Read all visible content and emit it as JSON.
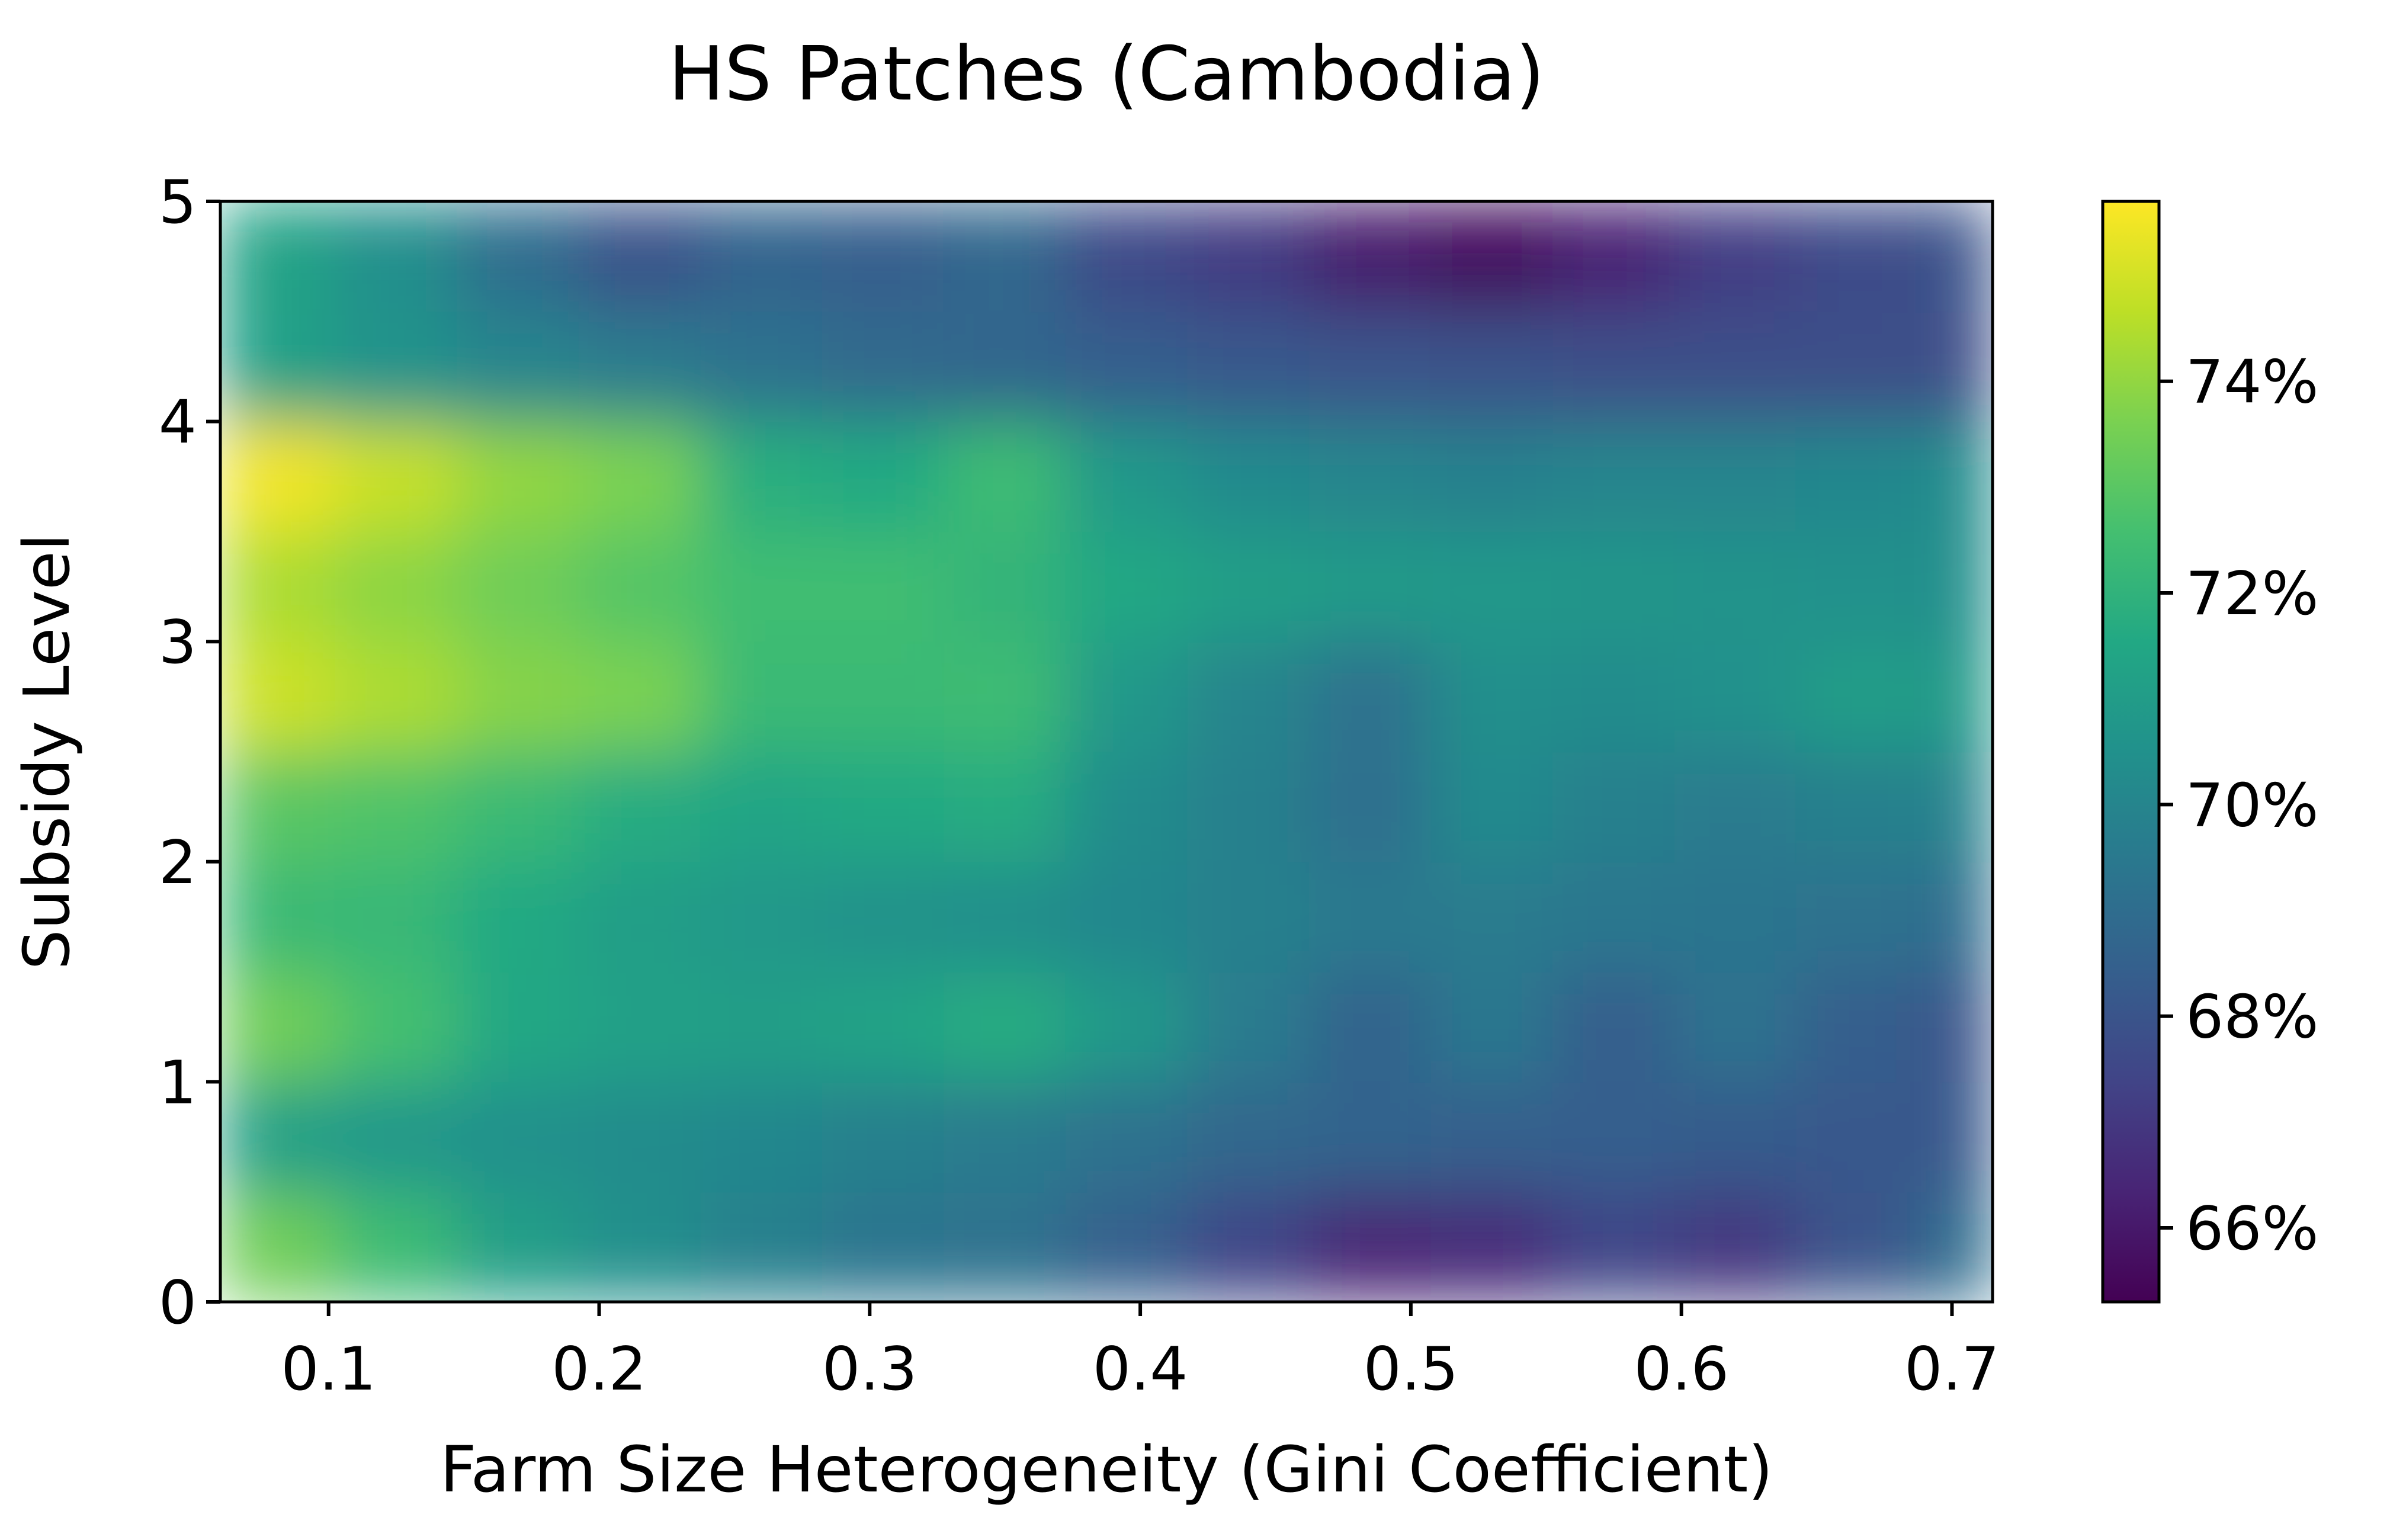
{
  "chart_data": {
    "type": "heatmap",
    "title": "HS Patches (Cambodia)",
    "xlabel": "Farm Size Heterogeneity (Gini Coefficient)",
    "ylabel": "Subsidy Level",
    "xlim": [
      0.06,
      0.715
    ],
    "ylim": [
      0,
      5
    ],
    "x_ticks": [
      0.1,
      0.2,
      0.3,
      0.4,
      0.5,
      0.6,
      0.7
    ],
    "x_tick_labels": [
      "0.1",
      "0.2",
      "0.3",
      "0.4",
      "0.5",
      "0.6",
      "0.7"
    ],
    "y_ticks": [
      0,
      1,
      2,
      3,
      4,
      5
    ],
    "y_tick_labels": [
      "0",
      "1",
      "2",
      "3",
      "4",
      "5"
    ],
    "x": [
      0.08,
      0.125,
      0.17,
      0.215,
      0.26,
      0.305,
      0.35,
      0.395,
      0.44,
      0.485,
      0.53,
      0.575,
      0.62,
      0.665,
      0.71
    ],
    "y": [
      0.25,
      0.75,
      1.25,
      1.75,
      2.25,
      2.75,
      3.25,
      3.75,
      4.25,
      4.75
    ],
    "z": [
      [
        73.4,
        72.4,
        71.1,
        70.4,
        69.8,
        69.3,
        69.2,
        68.5,
        67.4,
        66.4,
        66.6,
        67.4,
        67.0,
        68.0,
        69.0
      ],
      [
        71.2,
        70.8,
        70.5,
        70.3,
        70.1,
        69.8,
        69.6,
        69.2,
        68.8,
        68.6,
        68.5,
        68.4,
        68.3,
        68.2,
        68.2
      ],
      [
        73.4,
        72.6,
        71.5,
        71.2,
        71.1,
        71.3,
        71.7,
        70.8,
        69.6,
        68.6,
        69.4,
        68.4,
        69.2,
        68.4,
        68.0
      ],
      [
        72.3,
        72.2,
        71.6,
        71.1,
        70.8,
        70.6,
        70.4,
        70.1,
        69.8,
        69.5,
        69.6,
        69.4,
        69.3,
        69.2,
        69.0
      ],
      [
        73.0,
        72.8,
        72.3,
        71.7,
        71.4,
        71.6,
        71.7,
        70.3,
        69.8,
        69.1,
        70.2,
        69.8,
        69.6,
        69.8,
        69.9
      ],
      [
        74.9,
        74.4,
        73.8,
        73.6,
        72.3,
        72.3,
        72.4,
        70.8,
        70.0,
        69.2,
        70.4,
        70.3,
        70.5,
        71.0,
        70.9
      ],
      [
        74.4,
        73.9,
        73.4,
        72.9,
        72.5,
        72.5,
        72.1,
        71.5,
        71.1,
        70.9,
        70.8,
        70.7,
        70.6,
        70.5,
        70.4
      ],
      [
        75.5,
        74.8,
        74.0,
        73.6,
        71.8,
        71.6,
        72.4,
        70.8,
        70.2,
        70.0,
        69.8,
        70.0,
        70.0,
        70.1,
        70.3
      ],
      [
        71.2,
        70.6,
        70.0,
        69.6,
        69.2,
        68.9,
        68.7,
        68.4,
        68.2,
        68.0,
        67.9,
        67.8,
        67.8,
        67.8,
        67.8
      ],
      [
        71.3,
        70.4,
        69.0,
        67.9,
        68.6,
        68.4,
        68.8,
        67.6,
        67.1,
        66.1,
        65.6,
        66.3,
        67.2,
        67.7,
        67.9
      ]
    ],
    "zlim": [
      65.3,
      75.7
    ],
    "colormap": "viridis",
    "colorbar_ticks": [
      66,
      68,
      70,
      72,
      74
    ],
    "colorbar_tick_labels": [
      "66%",
      "68%",
      "70%",
      "72%",
      "74%"
    ],
    "grid": false,
    "legend": "colorbar-right"
  }
}
